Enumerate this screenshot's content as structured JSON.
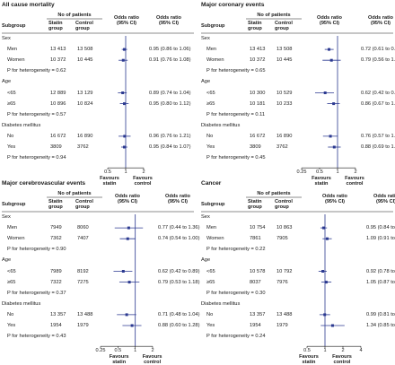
{
  "headers": {
    "subgroup": "Subgroup",
    "no_of_patients": "No of patients",
    "statin": "Statin group",
    "control": "Control group",
    "odds_ratio": "Odds ratio (95% CI)",
    "odds_ratio_ci": "Odds ratio (95% CI)"
  },
  "axis": {
    "favours_statin": "Favours statin",
    "favours_control": "Favours control"
  },
  "colors": {
    "marker": "#2b3990",
    "line": "#2b3990",
    "ref": "#2b3990"
  },
  "chart_data": [
    {
      "type": "forest",
      "title": "All cause mortality",
      "ticks": [
        "0.5",
        "1",
        "2"
      ],
      "tick_values": [
        0.5,
        1,
        2
      ],
      "xlim": [
        0.5,
        2
      ],
      "scale": "log",
      "rows": [
        {
          "kind": "group",
          "label": "Sex"
        },
        {
          "kind": "data",
          "label": "Men",
          "statin": "13 413",
          "control": "13 508",
          "or": 0.95,
          "lo": 0.86,
          "hi": 1.06,
          "text": "0.95 (0.86 to 1.06)"
        },
        {
          "kind": "data",
          "label": "Women",
          "statin": "10 372",
          "control": "10 445",
          "or": 0.91,
          "lo": 0.76,
          "hi": 1.08,
          "text": "0.91 (0.76 to 1.08)"
        },
        {
          "kind": "het",
          "label": "P for heterogeneity = 0.62"
        },
        {
          "kind": "group",
          "label": "Age"
        },
        {
          "kind": "data",
          "label": "<65",
          "statin": "12 889",
          "control": "13 129",
          "or": 0.89,
          "lo": 0.74,
          "hi": 1.04,
          "text": "0.89 (0.74 to 1.04)"
        },
        {
          "kind": "data",
          "label": "≥65",
          "statin": "10 896",
          "control": "10 824",
          "or": 0.95,
          "lo": 0.8,
          "hi": 1.12,
          "text": "0.95 (0.80 to 1.12)"
        },
        {
          "kind": "het",
          "label": "P for heterogeneity = 0.57"
        },
        {
          "kind": "group",
          "label": "Diabetes mellitus"
        },
        {
          "kind": "data",
          "label": "No",
          "statin": "16 672",
          "control": "16 890",
          "or": 0.96,
          "lo": 0.76,
          "hi": 1.21,
          "text": "0.96 (0.76 to 1.21)"
        },
        {
          "kind": "data",
          "label": "Yes",
          "statin": "3809",
          "control": "3762",
          "or": 0.95,
          "lo": 0.84,
          "hi": 1.07,
          "text": "0.95 (0.84 to 1.07)"
        },
        {
          "kind": "het",
          "label": "P for heterogeneity = 0.94"
        }
      ]
    },
    {
      "type": "forest",
      "title": "Major coronary events",
      "ticks": [
        "0.25",
        "0.5",
        "1",
        "2"
      ],
      "tick_values": [
        0.25,
        0.5,
        1,
        2
      ],
      "xlim": [
        0.25,
        2
      ],
      "scale": "log",
      "rows": [
        {
          "kind": "group",
          "label": "Sex"
        },
        {
          "kind": "data",
          "label": "Men",
          "statin": "13 413",
          "control": "13 508",
          "or": 0.72,
          "lo": 0.61,
          "hi": 0.86,
          "text": "0.72 (0.61 to 0.86)"
        },
        {
          "kind": "data",
          "label": "Women",
          "statin": "10 372",
          "control": "10 445",
          "or": 0.79,
          "lo": 0.56,
          "hi": 1.13,
          "text": "0.79 (0.56 to 1.13)"
        },
        {
          "kind": "het",
          "label": "P for heterogeneity = 0.65"
        },
        {
          "kind": "group",
          "label": "Age"
        },
        {
          "kind": "data",
          "label": "<65",
          "statin": "10 300",
          "control": "10 529",
          "or": 0.62,
          "lo": 0.42,
          "hi": 0.87,
          "text": "0.62 (0.42 to 0.87)"
        },
        {
          "kind": "data",
          "label": "≥65",
          "statin": "10 181",
          "control": "10 233",
          "or": 0.86,
          "lo": 0.67,
          "hi": 1.09,
          "text": "0.86 (0.67 to 1.09)"
        },
        {
          "kind": "het",
          "label": "P for heterogeneity = 0.11"
        },
        {
          "kind": "group",
          "label": "Diabetes mellitus"
        },
        {
          "kind": "data",
          "label": "No",
          "statin": "16 672",
          "control": "16 890",
          "or": 0.76,
          "lo": 0.57,
          "hi": 1.01,
          "text": "0.76 (0.57 to 1.01)"
        },
        {
          "kind": "data",
          "label": "Yes",
          "statin": "3809",
          "control": "3762",
          "or": 0.88,
          "lo": 0.69,
          "hi": 1.13,
          "text": "0.88 (0.69 to 1.13)"
        },
        {
          "kind": "het",
          "label": "P for heterogeneity = 0.45"
        }
      ]
    },
    {
      "type": "forest",
      "title": "Major cerebrovascular events",
      "ticks": [
        "0.25",
        "0.5",
        "1",
        "2"
      ],
      "tick_values": [
        0.25,
        0.5,
        1,
        2
      ],
      "xlim": [
        0.25,
        2
      ],
      "scale": "log",
      "rows": [
        {
          "kind": "group",
          "label": "Sex"
        },
        {
          "kind": "data",
          "label": "Men",
          "statin": "7949",
          "control": "8060",
          "or": 0.77,
          "lo": 0.44,
          "hi": 1.36,
          "text": "0.77 (0.44 to 1.36)"
        },
        {
          "kind": "data",
          "label": "Women",
          "statin": "7362",
          "control": "7407",
          "or": 0.74,
          "lo": 0.54,
          "hi": 1.0,
          "text": "0.74 (0.54 to 1.00)"
        },
        {
          "kind": "het",
          "label": "P for heterogeneity = 0.90"
        },
        {
          "kind": "group",
          "label": "Age"
        },
        {
          "kind": "data",
          "label": "<65",
          "statin": "7989",
          "control": "8192",
          "or": 0.62,
          "lo": 0.42,
          "hi": 0.89,
          "text": "0.62 (0.42 to 0.89)"
        },
        {
          "kind": "data",
          "label": "≥65",
          "statin": "7322",
          "control": "7275",
          "or": 0.79,
          "lo": 0.53,
          "hi": 1.18,
          "text": "0.79 (0.53 to 1.18)"
        },
        {
          "kind": "het",
          "label": "P for heterogeneity = 0.37"
        },
        {
          "kind": "group",
          "label": "Diabetes mellitus"
        },
        {
          "kind": "data",
          "label": "No",
          "statin": "13 357",
          "control": "13 488",
          "or": 0.71,
          "lo": 0.48,
          "hi": 1.04,
          "text": "0.71 (0.48 to 1.04)"
        },
        {
          "kind": "data",
          "label": "Yes",
          "statin": "1954",
          "control": "1979",
          "or": 0.88,
          "lo": 0.6,
          "hi": 1.28,
          "text": "0.88 (0.60 to 1.28)"
        },
        {
          "kind": "het",
          "label": "P for heterogeneity = 0.43"
        }
      ]
    },
    {
      "type": "forest",
      "title": "Cancer",
      "ticks": [
        "0.5",
        "1",
        "2",
        "4"
      ],
      "tick_values": [
        0.5,
        1,
        2,
        4
      ],
      "xlim": [
        0.5,
        4
      ],
      "scale": "log",
      "rows": [
        {
          "kind": "group",
          "label": "Sex"
        },
        {
          "kind": "data",
          "label": "Men",
          "statin": "10 754",
          "control": "10 863",
          "or": 0.95,
          "lo": 0.84,
          "hi": 1.08,
          "text": "0.95 (0.84 to 1.08)"
        },
        {
          "kind": "data",
          "label": "Women",
          "statin": "7861",
          "control": "7905",
          "or": 1.09,
          "lo": 0.91,
          "hi": 1.3,
          "text": "1.09 (0.91 to 1.30)"
        },
        {
          "kind": "het",
          "label": "P for heterogeneity = 0.22"
        },
        {
          "kind": "group",
          "label": "Age"
        },
        {
          "kind": "data",
          "label": "<65",
          "statin": "10 578",
          "control": "10 792",
          "or": 0.92,
          "lo": 0.78,
          "hi": 1.07,
          "text": "0.92 (0.78 to 1.07)"
        },
        {
          "kind": "data",
          "label": "≥65",
          "statin": "8037",
          "control": "7976",
          "or": 1.05,
          "lo": 0.87,
          "hi": 1.28,
          "text": "1.05 (0.87 to 1.28)"
        },
        {
          "kind": "het",
          "label": "P for heterogeneity = 0.30"
        },
        {
          "kind": "group",
          "label": "Diabetes mellitus"
        },
        {
          "kind": "data",
          "label": "No",
          "statin": "13 357",
          "control": "13 488",
          "or": 0.99,
          "lo": 0.81,
          "hi": 1.22,
          "text": "0.99 (0.81 to 1.22)"
        },
        {
          "kind": "data",
          "label": "Yes",
          "statin": "1954",
          "control": "1979",
          "or": 1.34,
          "lo": 0.85,
          "hi": 2.13,
          "text": "1.34 (0.85 to 2.13)"
        },
        {
          "kind": "het",
          "label": "P for heterogeneity = 0.24"
        }
      ]
    }
  ]
}
